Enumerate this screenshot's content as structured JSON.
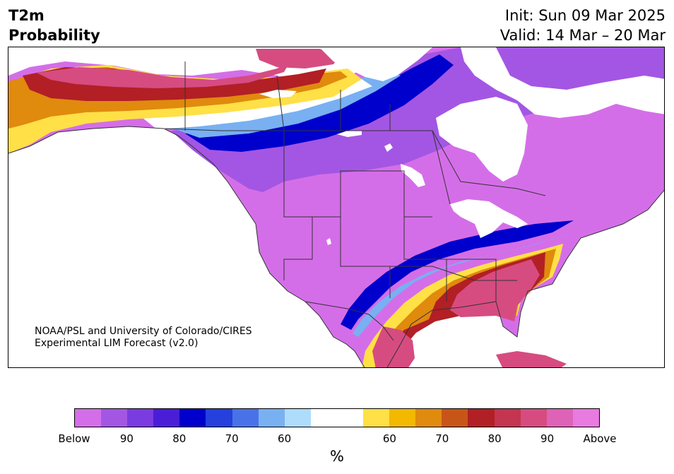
{
  "header": {
    "title_line1": "T2m",
    "title_line2": "Probability",
    "init_text": "Init: Sun 09 Mar 2025",
    "valid_text": "Valid: 14 Mar – 20 Mar"
  },
  "credit": {
    "line1": "NOAA/PSL and University of Colorado/CIRES",
    "line2": "Experimental LIM Forecast (v2.0)"
  },
  "colorbar": {
    "unit": "%",
    "colors": [
      "#d46ee8",
      "#a356e3",
      "#7a3be0",
      "#4a1ed9",
      "#0000cc",
      "#2540dd",
      "#4a72e8",
      "#78b0f2",
      "#aedcfb",
      "#ffffff",
      "#ffffff",
      "#ffe046",
      "#f3b800",
      "#e08a0e",
      "#c85518",
      "#b21f25",
      "#c33550",
      "#d64c80",
      "#de62b6",
      "#e87ae0"
    ],
    "tick_labels": [
      "Below",
      "90",
      "80",
      "70",
      "60",
      "60",
      "70",
      "80",
      "90",
      "Above"
    ]
  },
  "map": {
    "colors": {
      "land_default": "#d46ee8",
      "below_mid": "#a356e3",
      "below_strong": "#0000cc",
      "below_light": "#78b0f2",
      "above_light": "#ffe046",
      "above_mid": "#e08a0e",
      "above_strong": "#b21f25",
      "above_pink": "#d64c80",
      "water": "#ffffff",
      "outline": "#333333"
    }
  }
}
